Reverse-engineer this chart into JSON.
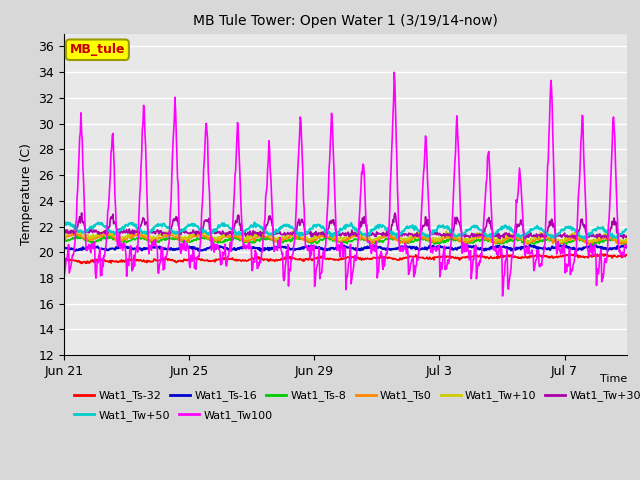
{
  "title": "MB Tule Tower: Open Water 1 (3/19/14-now)",
  "ylabel": "Temperature (C)",
  "xlabel": "Time",
  "ylim": [
    12,
    37
  ],
  "yticks": [
    12,
    14,
    16,
    18,
    20,
    22,
    24,
    26,
    28,
    30,
    32,
    34,
    36
  ],
  "xtick_labels": [
    "Jun 21",
    "Jun 25",
    "Jun 29",
    "Jul 3",
    "Jul 7"
  ],
  "xtick_positions": [
    0,
    4,
    8,
    12,
    16
  ],
  "n_days": 18,
  "n_per_day": 48,
  "fig_bg": "#d8d8d8",
  "ax_bg": "#e8e8e8",
  "grid_color": "#ffffff",
  "legend_box_text": "MB_tule",
  "legend_box_facecolor": "#ffff00",
  "legend_box_edgecolor": "#999900",
  "legend_box_textcolor": "#cc0000",
  "series_order": [
    "Wat1_Ts-32",
    "Wat1_Ts-16",
    "Wat1_Ts-8",
    "Wat1_Ts0",
    "Wat1_Tw+10",
    "Wat1_Tw+30",
    "Wat1_Tw+50",
    "Wat1_Tw100"
  ],
  "series": {
    "Wat1_Ts-32": {
      "color": "#ff0000",
      "lw": 1.2,
      "base": 19.3,
      "trend": 0.025,
      "amp": 0.08,
      "noise": 0.05
    },
    "Wat1_Ts-16": {
      "color": "#0000cc",
      "lw": 1.5,
      "base": 20.3,
      "trend": 0.004,
      "amp": 0.1,
      "noise": 0.05
    },
    "Wat1_Ts-8": {
      "color": "#00cc00",
      "lw": 1.2,
      "base": 21.0,
      "trend": -0.01,
      "amp": 0.15,
      "noise": 0.06
    },
    "Wat1_Ts0": {
      "color": "#ff8800",
      "lw": 1.2,
      "base": 21.2,
      "trend": -0.015,
      "amp": 0.2,
      "noise": 0.07
    },
    "Wat1_Tw+10": {
      "color": "#cccc00",
      "lw": 1.2,
      "base": 21.4,
      "trend": -0.015,
      "amp": 0.25,
      "noise": 0.08
    },
    "Wat1_Tw+30": {
      "color": "#aa00aa",
      "lw": 1.2,
      "base": 21.6,
      "trend": -0.02,
      "amp": 1.5,
      "noise": 0.1
    },
    "Wat1_Tw+50": {
      "color": "#00cccc",
      "lw": 1.5,
      "base": 21.9,
      "trend": -0.02,
      "amp": 0.35,
      "noise": 0.08
    },
    "Wat1_Tw100": {
      "color": "#ff00ff",
      "lw": 1.2,
      "base": 20.5,
      "trend": -0.02,
      "amp_up": 11.0,
      "amp_dn": 5.5,
      "noise": 0.3
    }
  },
  "tw100_peak_heights": [
    10.5,
    9.5,
    11.5,
    11.8,
    10.2,
    9.8,
    8.0,
    10.5,
    10.9,
    7.0,
    13.5,
    9.0,
    10.5,
    8.0,
    6.5,
    13.8,
    10.8,
    11.0
  ],
  "tw100_trough_depths": [
    4.5,
    5.5,
    4.0,
    4.5,
    3.5,
    3.0,
    3.5,
    5.0,
    5.5,
    6.0,
    4.0,
    4.5,
    4.0,
    4.5,
    7.0,
    3.5,
    4.0,
    4.5
  ],
  "legend_row1": [
    "Wat1_Ts-32",
    "Wat1_Ts-16",
    "Wat1_Ts-8",
    "Wat1_Ts0",
    "Wat1_Tw+10",
    "Wat1_Tw+30"
  ],
  "legend_row2": [
    "Wat1_Tw+50",
    "Wat1_Tw100"
  ]
}
